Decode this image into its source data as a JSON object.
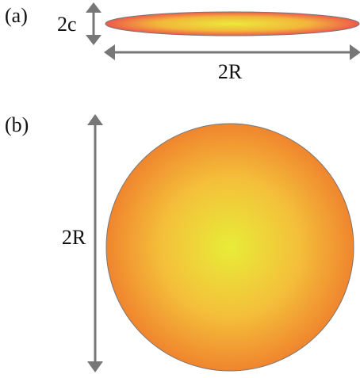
{
  "panels": [
    {
      "label": "(a)",
      "dimensions": [
        "2c",
        "2R"
      ]
    },
    {
      "label": "(b)",
      "dimensions": [
        "2R"
      ]
    }
  ]
}
